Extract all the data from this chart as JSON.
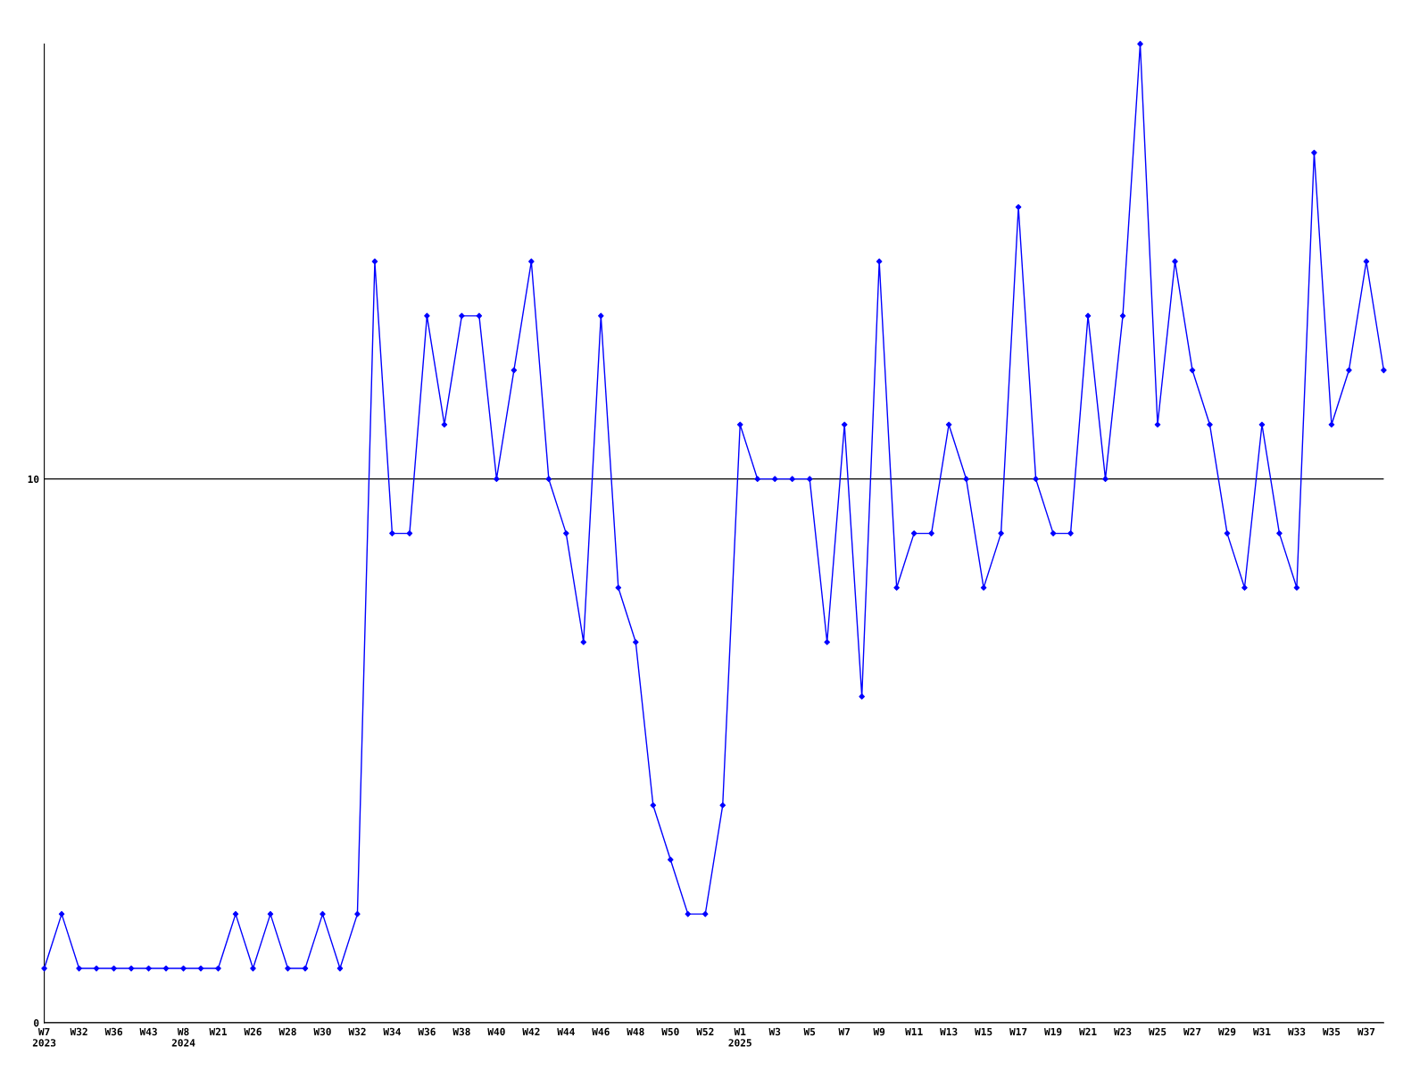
{
  "chart_data": {
    "type": "line",
    "categories": [
      "W7\n2023",
      null,
      "W32",
      null,
      "W36",
      null,
      "W43",
      null,
      "W8\n2024",
      null,
      "W21",
      null,
      "W26",
      null,
      "W28",
      null,
      "W30",
      null,
      "W32",
      null,
      "W34",
      null,
      "W36",
      null,
      "W38",
      null,
      "W40",
      null,
      "W42",
      null,
      "W44",
      null,
      "W46",
      null,
      "W48",
      null,
      "W50",
      null,
      "W52",
      null,
      "W1\n2025",
      null,
      "W3",
      null,
      "W5",
      null,
      "W7",
      null,
      "W9",
      null,
      "W11",
      null,
      "W13",
      null,
      "W15",
      null,
      "W17",
      null,
      "W19",
      null,
      "W21",
      null,
      "W23",
      null,
      "W25",
      null,
      "W27",
      null,
      "W29",
      null,
      "W31",
      null,
      "W33",
      null,
      "W35",
      null,
      "W37",
      null
    ],
    "series": [
      {
        "color": "#0000ff",
        "values": [
          1,
          2,
          1,
          1,
          1,
          1,
          1,
          1,
          1,
          1,
          1,
          2,
          1,
          2,
          1,
          1,
          2,
          1,
          2,
          14,
          9,
          9,
          13,
          11,
          13,
          13,
          10,
          12,
          14,
          10,
          9,
          7,
          13,
          8,
          7,
          4,
          3,
          2,
          2,
          4,
          11,
          10,
          10,
          10,
          10,
          7,
          11,
          6,
          14,
          8,
          9,
          9,
          11,
          10,
          8,
          9,
          15,
          10,
          9,
          9,
          13,
          10,
          13,
          18,
          11,
          14,
          12,
          11,
          9,
          8,
          11,
          9,
          8,
          16,
          11,
          12,
          14,
          12
        ]
      }
    ],
    "ylim": [
      0,
      18
    ],
    "yticks": [
      0,
      10
    ],
    "grid": "y",
    "marker": "diamond",
    "line_style": "solid",
    "legend": false
  }
}
